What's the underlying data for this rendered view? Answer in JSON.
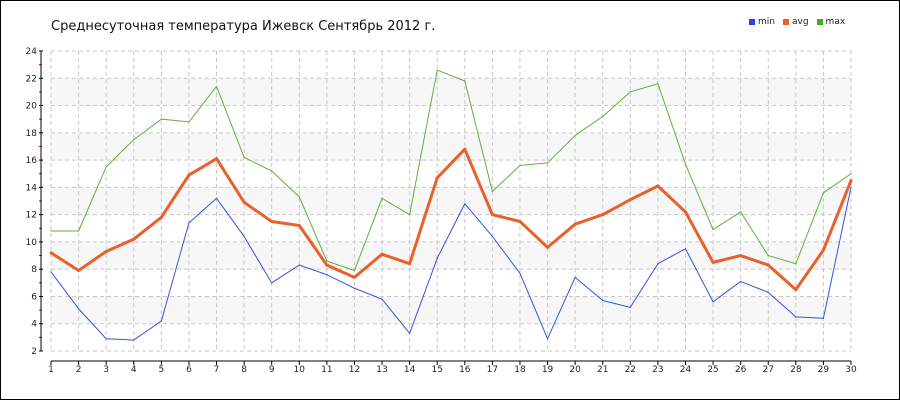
{
  "chart_data": {
    "type": "line",
    "title": "Среднесуточная температура Ижевск  Сентябрь 2012 г.",
    "xlabel": "",
    "ylabel": "",
    "x": [
      1,
      2,
      3,
      4,
      5,
      6,
      7,
      8,
      9,
      10,
      11,
      12,
      13,
      14,
      15,
      16,
      17,
      18,
      19,
      20,
      21,
      22,
      23,
      24,
      25,
      26,
      27,
      28,
      29,
      30
    ],
    "ylim": [
      2,
      24
    ],
    "yticks": [
      2,
      4,
      6,
      8,
      10,
      12,
      14,
      16,
      18,
      20,
      22,
      24
    ],
    "grid": true,
    "legend": "top-right",
    "series": [
      {
        "name": "min",
        "color": "#3355dd",
        "values": [
          7.8,
          5.1,
          2.9,
          2.8,
          4.2,
          11.4,
          13.2,
          10.4,
          7.0,
          8.3,
          7.6,
          6.6,
          5.8,
          3.3,
          8.8,
          12.8,
          10.4,
          7.7,
          2.9,
          7.4,
          5.7,
          5.2,
          8.4,
          9.5,
          5.6,
          7.1,
          6.3,
          4.5,
          4.4,
          14.0
        ]
      },
      {
        "name": "avg",
        "color": "#e8612c",
        "values": [
          9.2,
          7.9,
          9.3,
          10.2,
          11.8,
          14.9,
          16.1,
          12.9,
          11.5,
          11.2,
          8.3,
          7.4,
          9.1,
          8.4,
          14.7,
          16.8,
          12.0,
          11.5,
          9.6,
          11.3,
          12.0,
          13.1,
          14.1,
          12.2,
          8.5,
          9.0,
          8.3,
          6.5,
          9.4,
          14.5
        ]
      },
      {
        "name": "max",
        "color": "#5cb23a",
        "values": [
          10.8,
          10.8,
          15.5,
          17.5,
          19.0,
          18.8,
          21.4,
          16.2,
          15.2,
          13.3,
          8.6,
          7.9,
          13.2,
          12.0,
          22.6,
          21.8,
          13.7,
          15.6,
          15.8,
          17.8,
          19.2,
          21.0,
          21.6,
          15.7,
          10.9,
          12.2,
          9.0,
          8.4,
          13.6,
          15.0
        ]
      }
    ]
  }
}
